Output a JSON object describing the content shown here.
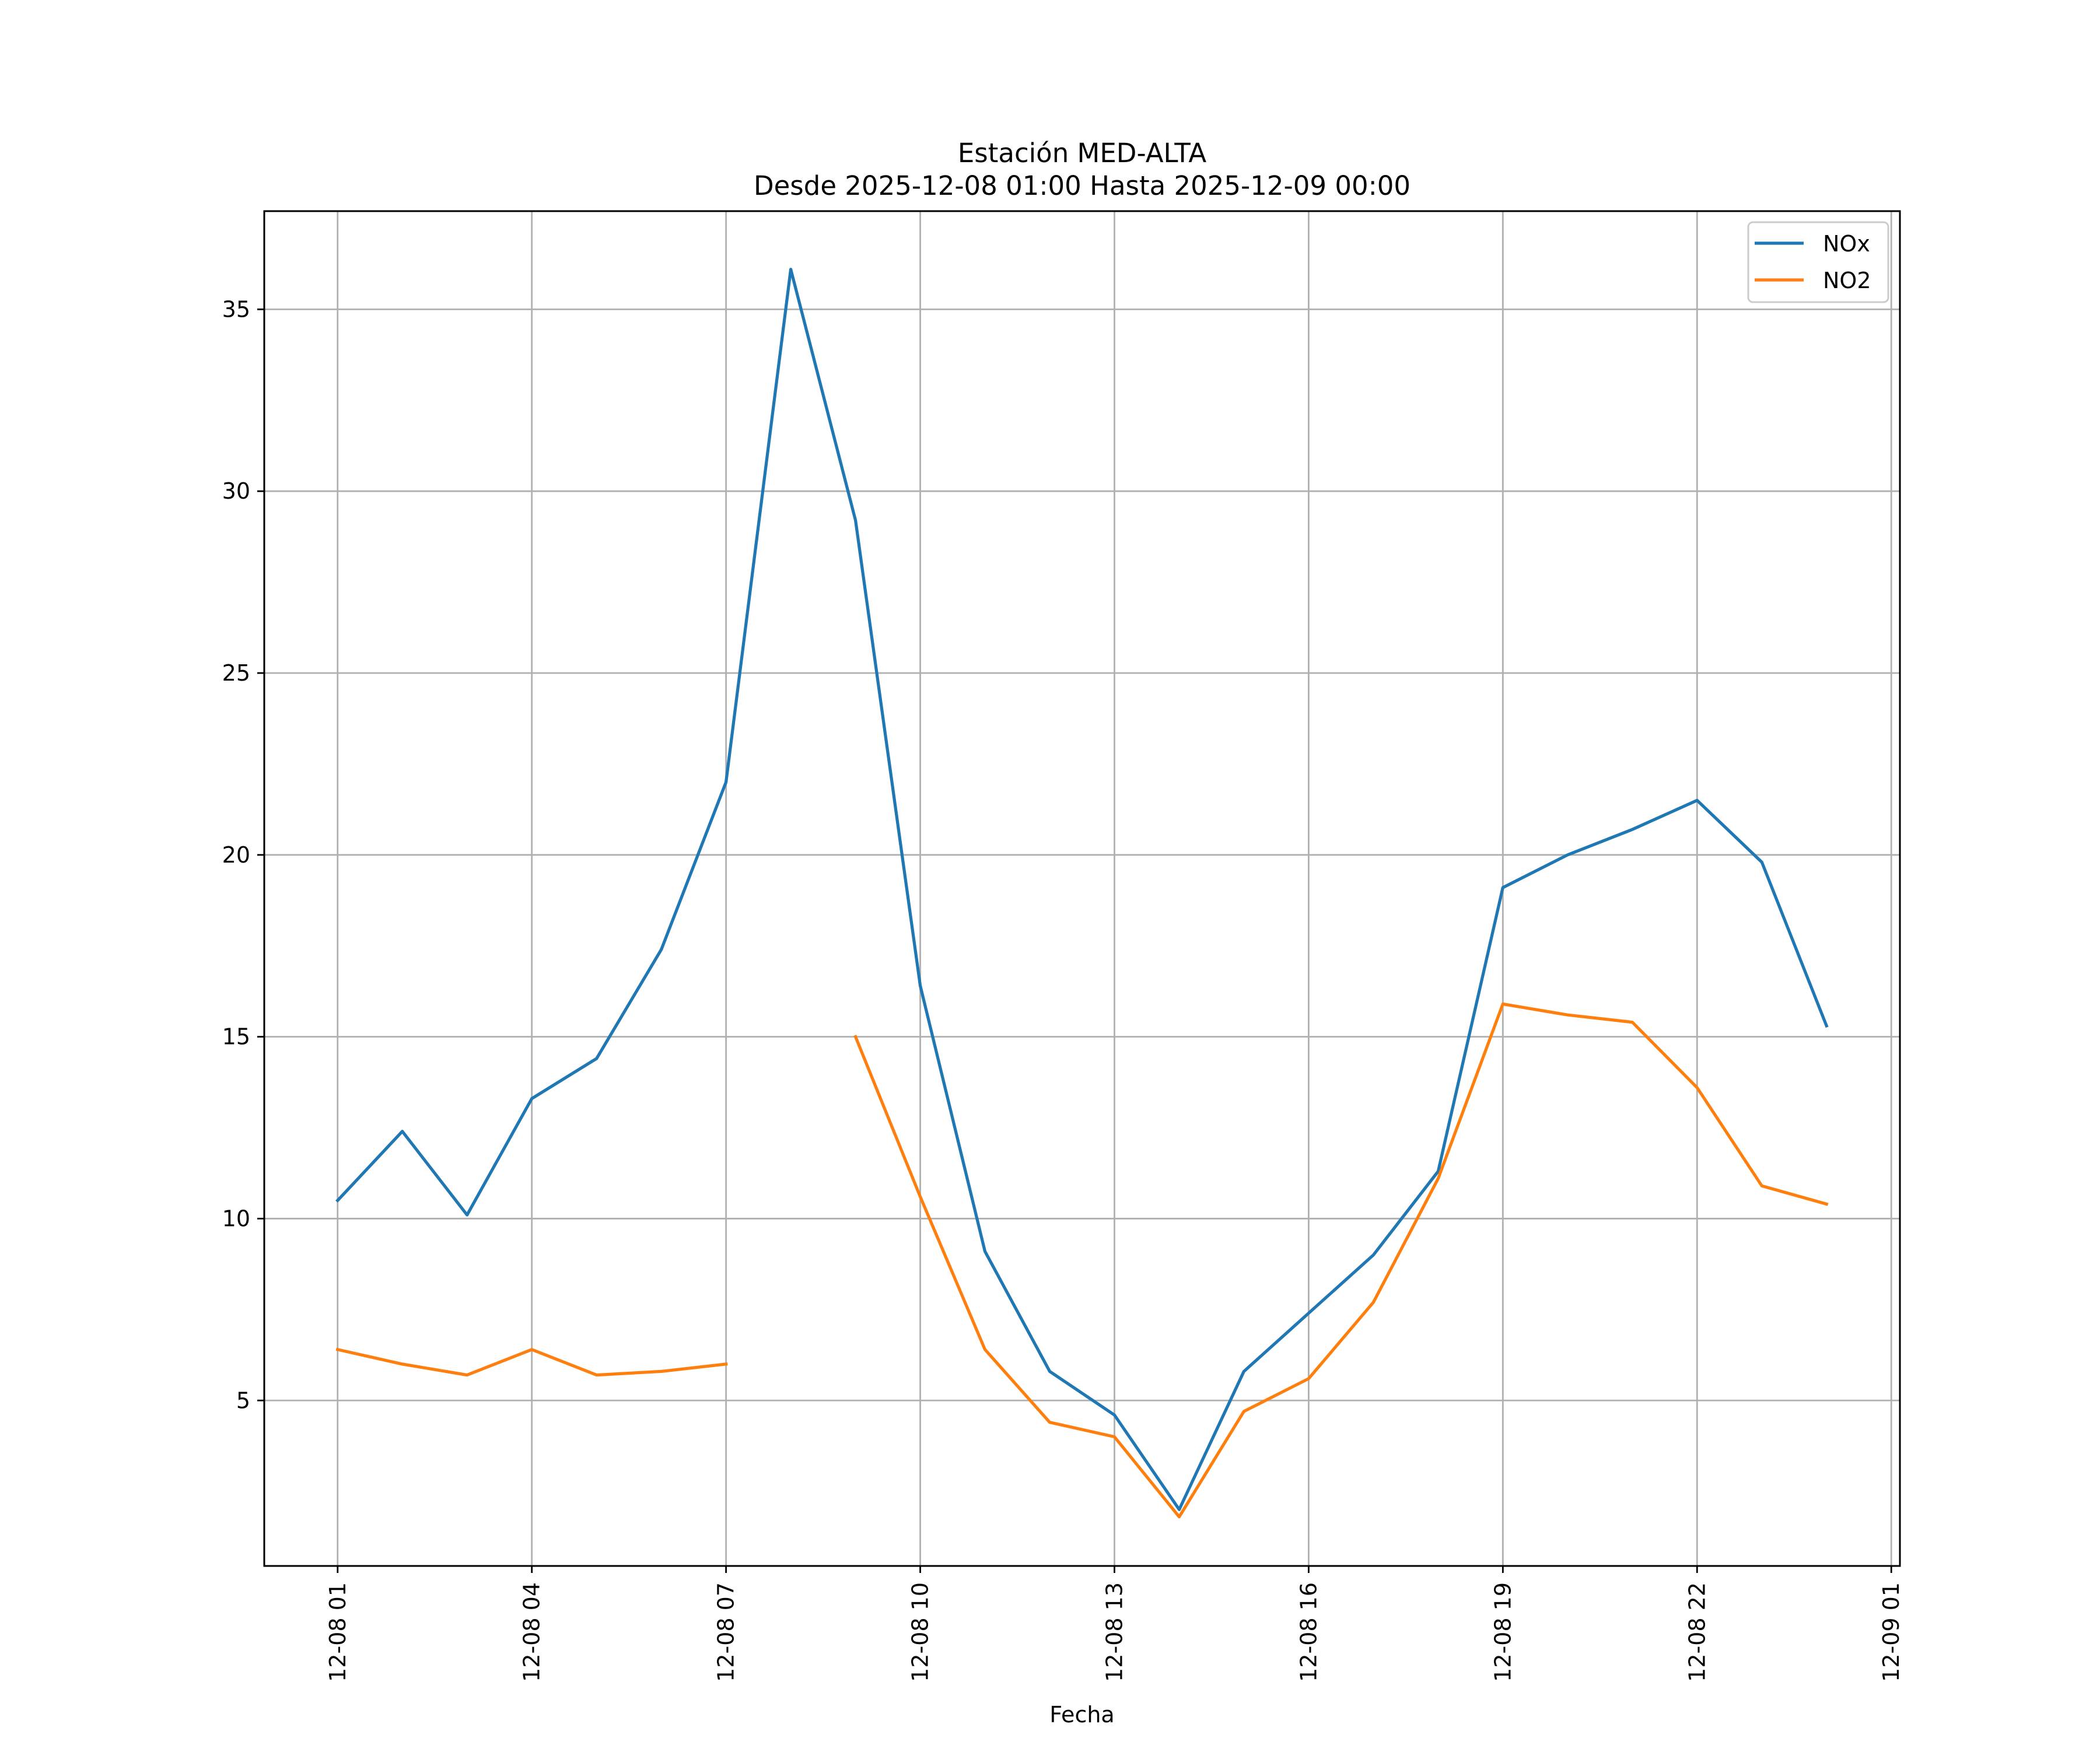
{
  "chart_data": {
    "type": "line",
    "title": "Estación MED-ALTA",
    "subtitle": "Desde 2025-12-08 01:00 Hasta 2025-12-09 00:00",
    "xlabel": "Fecha",
    "ylabel": "",
    "x": [
      "2025-12-08 01:00",
      "2025-12-08 02:00",
      "2025-12-08 03:00",
      "2025-12-08 04:00",
      "2025-12-08 05:00",
      "2025-12-08 06:00",
      "2025-12-08 07:00",
      "2025-12-08 08:00",
      "2025-12-08 09:00",
      "2025-12-08 10:00",
      "2025-12-08 11:00",
      "2025-12-08 12:00",
      "2025-12-08 13:00",
      "2025-12-08 14:00",
      "2025-12-08 15:00",
      "2025-12-08 16:00",
      "2025-12-08 17:00",
      "2025-12-08 18:00",
      "2025-12-08 19:00",
      "2025-12-08 20:00",
      "2025-12-08 21:00",
      "2025-12-08 22:00",
      "2025-12-08 23:00",
      "2025-12-09 00:00"
    ],
    "series": [
      {
        "name": "NOx",
        "color": "#1f77b4",
        "values": [
          10.5,
          12.4,
          10.1,
          13.3,
          14.4,
          17.4,
          22.0,
          36.1,
          29.2,
          16.4,
          9.1,
          5.8,
          4.6,
          2.0,
          5.8,
          7.4,
          9.0,
          11.3,
          19.1,
          20.0,
          20.7,
          21.5,
          19.8,
          15.3
        ]
      },
      {
        "name": "NO2",
        "color": "#ff7f0e",
        "values": [
          6.4,
          6.0,
          5.7,
          6.4,
          5.7,
          5.8,
          6.0,
          null,
          15.0,
          10.6,
          6.4,
          4.4,
          4.0,
          1.8,
          4.7,
          5.6,
          7.7,
          11.1,
          15.9,
          15.6,
          15.4,
          13.6,
          10.9,
          10.4
        ]
      }
    ],
    "xticks": [
      "12-08 01",
      "12-08 04",
      "12-08 07",
      "12-08 10",
      "12-08 13",
      "12-08 16",
      "12-08 19",
      "12-08 22",
      "12-09 01"
    ],
    "xlim": [
      "2025-12-07 23:52",
      "2025-12-09 01:08"
    ],
    "ylim": [
      0.45,
      37.7
    ],
    "yticks": [
      5,
      10,
      15,
      20,
      25,
      30,
      35
    ],
    "grid": true,
    "legend_position": "top-right"
  }
}
